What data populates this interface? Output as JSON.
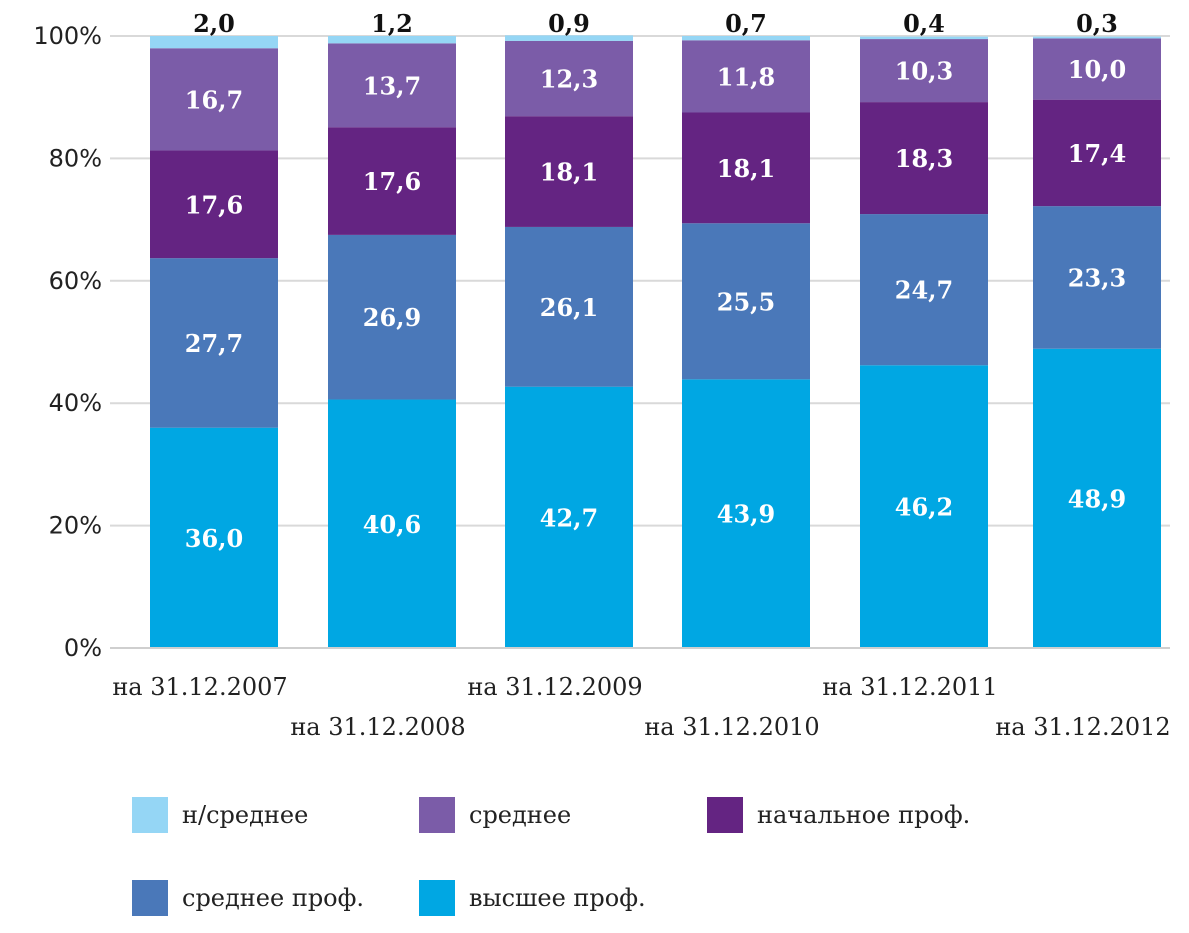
{
  "chart_data": {
    "type": "bar",
    "stacked": true,
    "percent": true,
    "categories": [
      "на 31.12.2007",
      "на 31.12.2008",
      "на 31.12.2009",
      "на 31.12.2010",
      "на 31.12.2011",
      "на 31.12.2012"
    ],
    "series": [
      {
        "name": "высшее проф.",
        "color": "#00a7e3",
        "values": [
          36.0,
          40.6,
          42.7,
          43.9,
          46.2,
          48.9
        ],
        "labels": [
          "36,0",
          "40,6",
          "42,7",
          "43,9",
          "46,2",
          "48,9"
        ]
      },
      {
        "name": "среднее проф.",
        "color": "#4a78b9",
        "values": [
          27.7,
          26.9,
          26.1,
          25.5,
          24.7,
          23.3
        ],
        "labels": [
          "27,7",
          "26,9",
          "26,1",
          "25,5",
          "24,7",
          "23,3"
        ]
      },
      {
        "name": "начальное проф.",
        "color": "#642482",
        "values": [
          17.6,
          17.6,
          18.1,
          18.1,
          18.3,
          17.4
        ],
        "labels": [
          "17,6",
          "17,6",
          "18,1",
          "18,1",
          "18,3",
          "17,4"
        ]
      },
      {
        "name": "среднее",
        "color": "#7b5ca8",
        "values": [
          16.7,
          13.7,
          12.3,
          11.8,
          10.3,
          10.0
        ],
        "labels": [
          "16,7",
          "13,7",
          "12,3",
          "11,8",
          "10,3",
          "10,0"
        ]
      },
      {
        "name": "н/среднее",
        "color": "#95d6f5",
        "values": [
          2.0,
          1.2,
          0.9,
          0.7,
          0.4,
          0.3
        ],
        "labels": [
          "2,0",
          "1,2",
          "0,9",
          "0,7",
          "0,4",
          "0,3"
        ]
      }
    ],
    "legend_order": [
      "н/среднее",
      "среднее",
      "начальное проф.",
      "среднее проф.",
      "высшее проф."
    ],
    "y_ticks": [
      "0%",
      "20%",
      "40%",
      "60%",
      "80%",
      "100%"
    ],
    "ylim": [
      0,
      100
    ],
    "grid": true,
    "legend_position": "bottom"
  }
}
